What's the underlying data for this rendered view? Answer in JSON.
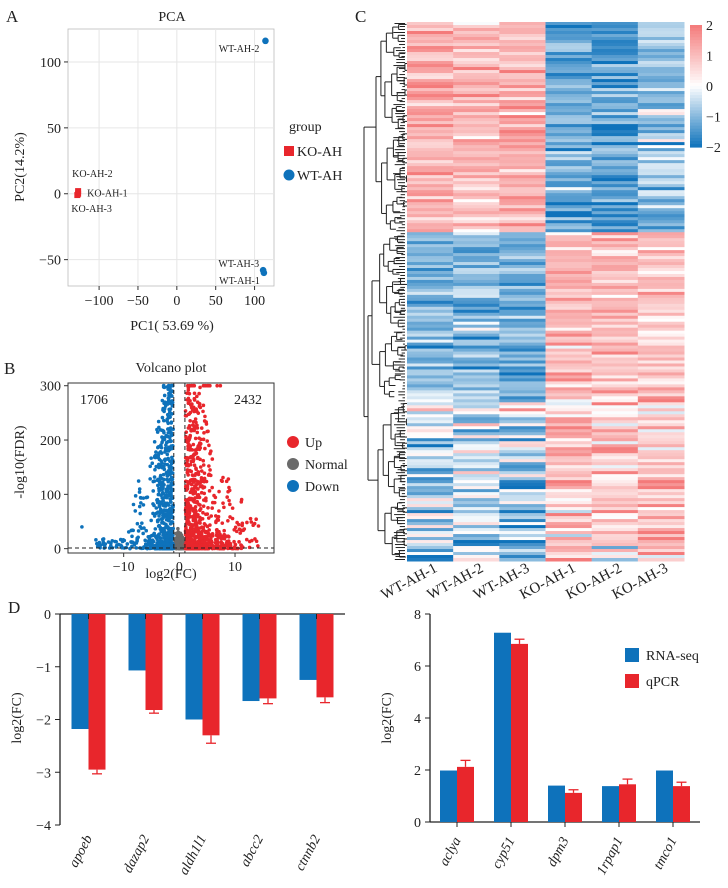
{
  "panels": {
    "a": "A",
    "b": "B",
    "c": "C",
    "d": "D"
  },
  "colors": {
    "ko": "#e8262c",
    "wt": "#0e72bb",
    "normal": "#6a6a6a",
    "heat_hi": "#f47a7a",
    "heat_mid": "#ffffff",
    "heat_lo": "#0e72bb"
  },
  "chart_data": [
    {
      "id": "pca",
      "type": "scatter",
      "title": "PCA",
      "xlabel": "PC1( 53.69 %)",
      "ylabel": "PC2(14.2%)",
      "xlim": [
        -140,
        125
      ],
      "ylim": [
        -70,
        125
      ],
      "xticks": [
        -100,
        -50,
        0,
        50,
        100
      ],
      "yticks": [
        -50,
        0,
        50,
        100
      ],
      "grid": true,
      "legend": {
        "title": "group",
        "position": "right"
      },
      "series": [
        {
          "name": "KO-AH",
          "marker": "square",
          "color": "#e8262c",
          "points": [
            {
              "label": "KO-AH-2",
              "x": -127,
              "y": 2
            },
            {
              "label": "KO-AH-1",
              "x": -127,
              "y": 0
            },
            {
              "label": "KO-AH-3",
              "x": -128,
              "y": -1
            }
          ]
        },
        {
          "name": "WT-AH",
          "marker": "circle",
          "color": "#0e72bb",
          "points": [
            {
              "label": "WT-AH-2",
              "x": 114,
              "y": 116
            },
            {
              "label": "WT-AH-3",
              "x": 111,
              "y": -58
            },
            {
              "label": "WT-AH-1",
              "x": 112,
              "y": -60
            }
          ]
        }
      ]
    },
    {
      "id": "volcano",
      "type": "scatter",
      "title": "Volcano plot",
      "xlabel": "log2(FC)",
      "ylabel": "-log10(FDR)",
      "xlim": [
        -20,
        17
      ],
      "ylim": [
        -8,
        305
      ],
      "xticks": [
        -10,
        0,
        10
      ],
      "yticks": [
        0,
        100,
        200,
        300
      ],
      "threshold_lines": {
        "x": [
          -1,
          1
        ],
        "y": 1.3
      },
      "counts": {
        "down": "1706",
        "up": "2432"
      },
      "legend": {
        "position": "right"
      },
      "series": [
        {
          "name": "Up",
          "color": "#e8262c"
        },
        {
          "name": "Normal",
          "color": "#6a6a6a"
        },
        {
          "name": "Down",
          "color": "#0e72bb"
        }
      ]
    },
    {
      "id": "heatmap",
      "type": "heatmap",
      "columns": [
        "WT-AH-1",
        "WT-AH-2",
        "WT-AH-3",
        "KO-AH-1",
        "KO-AH-2",
        "KO-AH-3"
      ],
      "colorbar": {
        "ticks": [
          "2",
          "1",
          "0",
          "−1",
          "−2"
        ],
        "range": [
          -2,
          2
        ]
      },
      "row_blocks": [
        {
          "fraction": 0.39,
          "values": [
            1.2,
            1.0,
            1.2,
            -1.2,
            -1.4,
            -0.9
          ]
        },
        {
          "fraction": 0.31,
          "values": [
            -1.0,
            -0.9,
            -1.1,
            1.0,
            0.9,
            0.9
          ]
        },
        {
          "fraction": 0.3,
          "values": [
            -0.5,
            -0.6,
            -0.7,
            0.7,
            0.6,
            0.8
          ]
        }
      ]
    },
    {
      "id": "bar-down",
      "type": "bar",
      "categories": [
        "apoeb",
        "dazap2",
        "aldh1l1",
        "abcc2",
        "ctnnb2"
      ],
      "ylabel": "log2(FC)",
      "ylim": [
        -4,
        0
      ],
      "yticks": [
        0,
        -1,
        -2,
        -3,
        -4
      ],
      "series": [
        {
          "name": "RNA-seq",
          "color": "#0e72bb",
          "values": [
            -2.18,
            -1.07,
            -2.0,
            -1.65,
            -1.25
          ]
        },
        {
          "name": "qPCR",
          "color": "#e8262c",
          "values": [
            -2.95,
            -1.82,
            -2.3,
            -1.6,
            -1.58
          ],
          "errors": [
            0.08,
            0.06,
            0.15,
            0.1,
            0.1
          ]
        }
      ]
    },
    {
      "id": "bar-up",
      "type": "bar",
      "categories": [
        "aclya",
        "cyp51",
        "dpm3",
        "1rpap1",
        "tmco1"
      ],
      "ylabel": "log2(FC)",
      "ylim": [
        0,
        8
      ],
      "yticks": [
        0,
        2,
        4,
        6,
        8
      ],
      "legend": {
        "position": "top-right"
      },
      "series": [
        {
          "name": "RNA-seq",
          "color": "#0e72bb",
          "values": [
            1.98,
            7.28,
            1.4,
            1.38,
            1.98
          ]
        },
        {
          "name": "qPCR",
          "color": "#e8262c",
          "values": [
            2.12,
            6.85,
            1.12,
            1.45,
            1.38
          ],
          "errors": [
            0.25,
            0.18,
            0.12,
            0.2,
            0.15
          ]
        }
      ]
    }
  ]
}
